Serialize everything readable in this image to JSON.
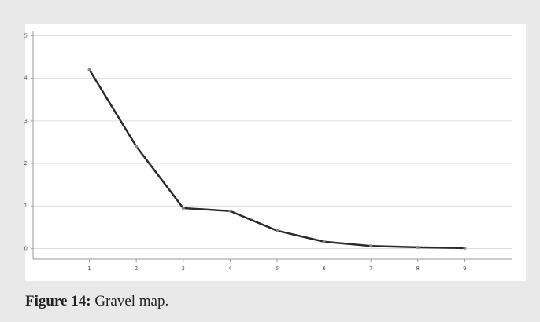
{
  "chart_data": {
    "type": "line",
    "x": [
      1,
      2,
      3,
      4,
      5,
      6,
      7,
      8,
      9
    ],
    "series": [
      {
        "color": "#2b2b2b",
        "values": [
          4.2,
          2.4,
          0.95,
          0.88,
          0.42,
          0.16,
          0.06,
          0.03,
          0.01
        ]
      }
    ],
    "xlim": [
      -0.2,
      10
    ],
    "xticks": [
      1,
      2,
      3,
      4,
      5,
      6,
      7,
      8,
      9
    ],
    "ylim": [
      -0.25,
      5.1
    ],
    "yticks": [
      0,
      1,
      2,
      3,
      4,
      5
    ],
    "grid": true
  },
  "caption": {
    "label": "Figure 14:",
    "text": "Gravel map."
  }
}
